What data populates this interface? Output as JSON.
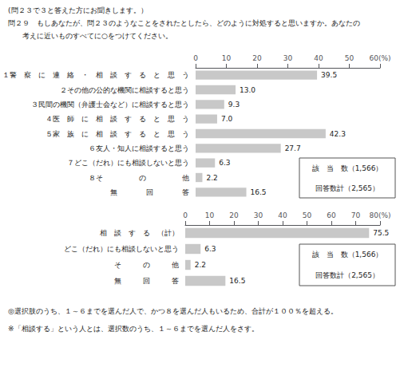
{
  "title": [
    "(問２３で３と答えた方にお聞きします。）",
    "問２９　もしあなたが、問２３のようなことをされたとしたら、どのように対処すると思いますか。あなたの",
    "　　考えに近いものすべてに○をつけてください。"
  ],
  "annotations": [
    "◎選択肢のうち、１～６までを選んだ人で、かつ８を選んだ人もいるため、合計が１００％を超える。",
    "※「相談する」という人とは、選択数のうち、１～６までを選んだ人をさす。"
  ],
  "chart_data": [
    {
      "type": "bar",
      "orientation": "horizontal",
      "categories": [
        "１警　察　に　連　絡　・　相　談　す　る　と　思　う",
        "２その他の公的な機関に相談すると思う",
        "３民間の機関（弁護士会など）に相談すると思う",
        "４医　師　に　相　談　す　る　と　思　う",
        "５家　族　に　相　談　す　る　と　思　う",
        "６友人・知人に相談すると思う",
        "７どこ（だれ）にも相談しないと思う",
        "８そ　　　　　の　　　　　他",
        "無　　　　回　　　　答"
      ],
      "values": [
        39.5,
        13.0,
        9.3,
        7.0,
        42.3,
        27.7,
        6.3,
        2.2,
        16.5
      ],
      "value_labels": [
        "39.5",
        "13.0",
        "9.3",
        "7.0",
        "42.3",
        "27.7",
        "6.3",
        "2.2",
        "16.5"
      ],
      "color": "#c8c8c8",
      "xlim": [
        0,
        60
      ],
      "xticks": [
        0,
        10,
        20,
        30,
        40,
        50,
        {
          "value": 60,
          "label": "60(%)"
        }
      ],
      "grid": false,
      "data_labels": true,
      "annotations": [
        "該　当　数（1,566）",
        "回答数計（2,565）"
      ]
    },
    {
      "type": "bar",
      "orientation": "horizontal",
      "categories": [
        "相　談　す　る　（計）",
        "どこ（だれ）にも相談しないと思う",
        "そ　　　の　　　他",
        "無　　　回　　　答"
      ],
      "values": [
        75.5,
        6.3,
        2.2,
        16.5
      ],
      "color": "#c8c8c8",
      "xlim": [
        0,
        80
      ],
      "xticks": [
        0,
        10,
        20,
        30,
        40,
        50,
        60,
        70,
        {
          "value": 80,
          "label": "80(%)"
        }
      ],
      "grid": false,
      "data_labels": true,
      "annotations": [
        "該　当　数（1,566）",
        "回答数計（2,565）"
      ]
    }
  ]
}
